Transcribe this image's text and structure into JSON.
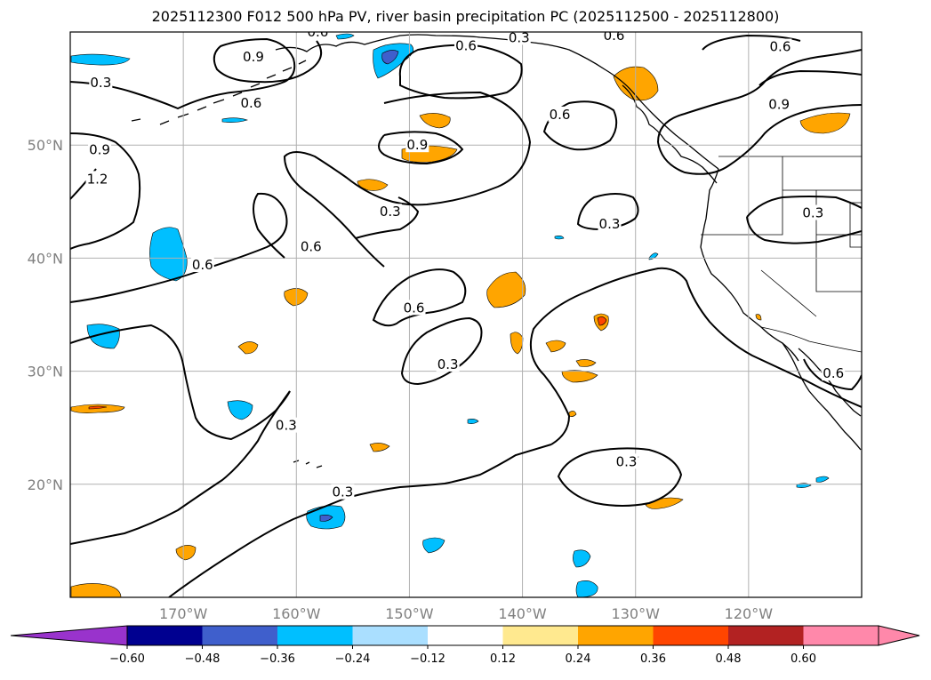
{
  "title": "2025112300 F012 500 hPa PV, river basin precipitation PC (2025112500 - 2025112800)",
  "map": {
    "extent": {
      "lon_min": -180,
      "lon_max": -110,
      "lat_min": 10,
      "lat_max": 60
    },
    "lon_ticks": [
      {
        "lon": -170,
        "label": "170°W"
      },
      {
        "lon": -160,
        "label": "160°W"
      },
      {
        "lon": -150,
        "label": "150°W"
      },
      {
        "lon": -140,
        "label": "140°W"
      },
      {
        "lon": -130,
        "label": "130°W"
      },
      {
        "lon": -120,
        "label": "120°W"
      }
    ],
    "lat_ticks": [
      {
        "lat": 50,
        "label": "50°N"
      },
      {
        "lat": 40,
        "label": "40°N"
      },
      {
        "lat": 30,
        "label": "30°N"
      },
      {
        "lat": 20,
        "label": "20°N"
      }
    ],
    "gridlines": true,
    "contour_labels": [
      {
        "text": "0.9",
        "lon": -163.8,
        "lat": 57.8
      },
      {
        "text": "0.3",
        "lon": -177.3,
        "lat": 55.5
      },
      {
        "text": "0.6",
        "lon": -164.0,
        "lat": 53.7
      },
      {
        "text": "0.9",
        "lon": -177.4,
        "lat": 49.6
      },
      {
        "text": "1.2",
        "lon": -177.6,
        "lat": 47.0
      },
      {
        "text": "0.6",
        "lon": -158.1,
        "lat": 60.0
      },
      {
        "text": "0.6",
        "lon": -145.0,
        "lat": 58.8
      },
      {
        "text": "0.3",
        "lon": -140.3,
        "lat": 59.5
      },
      {
        "text": "0.6",
        "lon": -131.9,
        "lat": 59.7
      },
      {
        "text": "0.6",
        "lon": -117.2,
        "lat": 58.7
      },
      {
        "text": "0.6",
        "lon": -136.7,
        "lat": 52.7
      },
      {
        "text": "0.9",
        "lon": -117.3,
        "lat": 53.6
      },
      {
        "text": "0.9",
        "lon": -149.3,
        "lat": 50.0
      },
      {
        "text": "0.3",
        "lon": -151.7,
        "lat": 44.1
      },
      {
        "text": "0.3",
        "lon": -132.3,
        "lat": 43.0
      },
      {
        "text": "0.3",
        "lon": -114.3,
        "lat": 44.0
      },
      {
        "text": "0.6",
        "lon": -158.7,
        "lat": 41.0
      },
      {
        "text": "0.6",
        "lon": -168.3,
        "lat": 39.4
      },
      {
        "text": "0.6",
        "lon": -149.6,
        "lat": 35.6
      },
      {
        "text": "0.3",
        "lon": -146.6,
        "lat": 30.6
      },
      {
        "text": "0.3",
        "lon": -160.9,
        "lat": 25.2
      },
      {
        "text": "0.3",
        "lon": -130.8,
        "lat": 22.0
      },
      {
        "text": "0.3",
        "lon": -155.9,
        "lat": 19.3
      },
      {
        "text": "0.6",
        "lon": -112.5,
        "lat": 29.8
      }
    ]
  },
  "colorbar": {
    "colors": [
      "#9933cc",
      "#000090",
      "#3f5fcc",
      "#00bfff",
      "#aadfff",
      "#ffffff",
      "#ffe98f",
      "#ffa500",
      "#ff4500",
      "#b22222",
      "#ff88aa",
      "#ff88aa"
    ],
    "tick_labels": [
      "−0.60",
      "−0.48",
      "−0.36",
      "−0.24",
      "−0.12",
      "0.12",
      "0.24",
      "0.36",
      "0.48",
      "0.60"
    ],
    "extend": "both"
  }
}
